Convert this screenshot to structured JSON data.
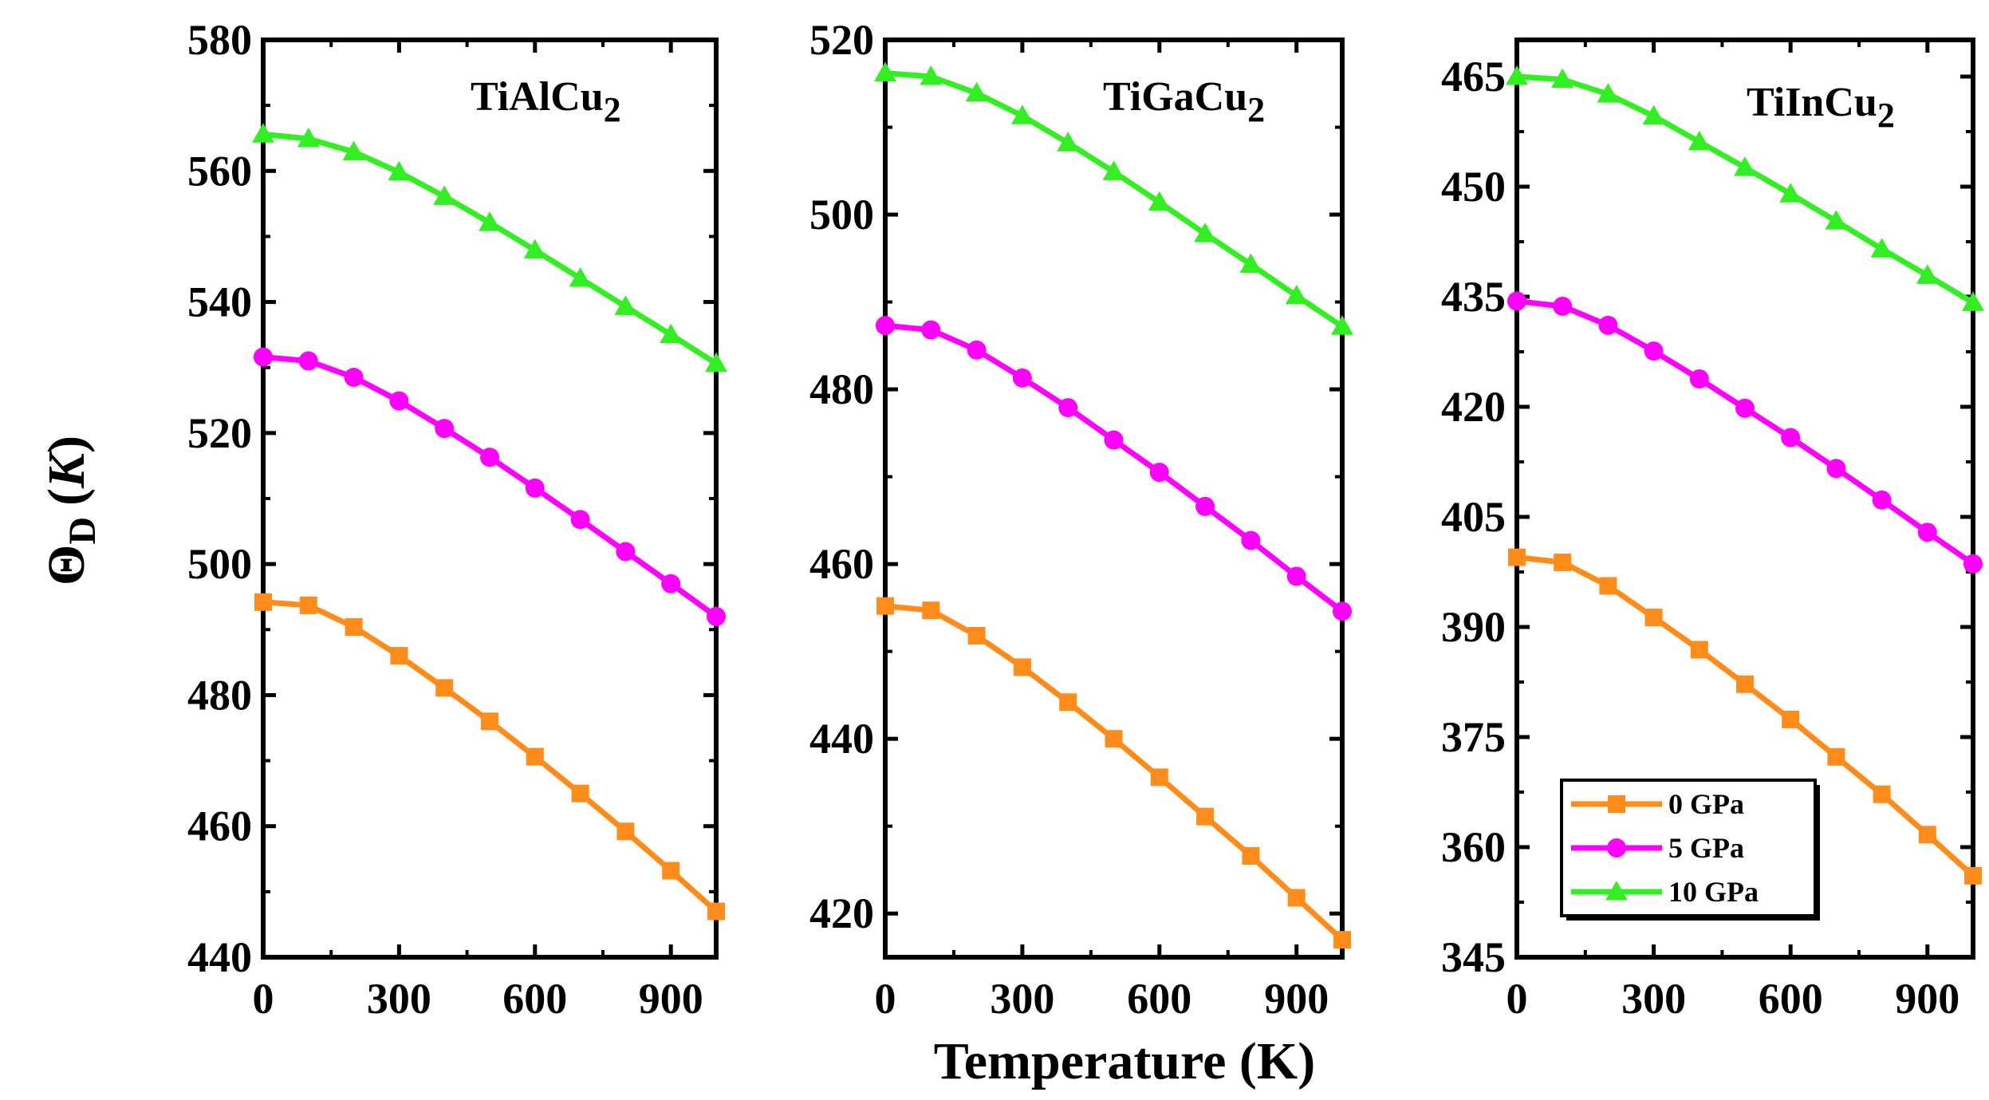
{
  "figure": {
    "xlabel": "Temperature (K)",
    "ylabel_main": "Θ",
    "ylabel_sub": "D",
    "ylabel_unit_open": "(",
    "ylabel_unit": "K",
    "ylabel_unit_close": ")"
  },
  "colors": {
    "0 GPa": "#ff8c1a",
    "5 GPa": "#ff00ff",
    "10 GPa": "#33ee22"
  },
  "legend": [
    {
      "label": "0 GPa",
      "marker": "square"
    },
    {
      "label": "5 GPa",
      "marker": "circle"
    },
    {
      "label": "10 GPa",
      "marker": "triangle"
    }
  ],
  "chart_data": [
    {
      "type": "line",
      "title_main": "TiAlCu",
      "title_sub": "2",
      "xlabel": "Temperature (K)",
      "ylabel": "ΘD (K)",
      "xlim": [
        0,
        1000
      ],
      "ylim": [
        440,
        580
      ],
      "xticks": [
        0,
        300,
        600,
        900
      ],
      "yticks": [
        440,
        460,
        480,
        500,
        520,
        540,
        560,
        580
      ],
      "x": [
        0,
        100,
        200,
        300,
        400,
        500,
        600,
        700,
        800,
        900,
        1000
      ],
      "series": [
        {
          "name": "0 GPa",
          "marker": "square",
          "values": [
            494.2,
            493.7,
            490.4,
            486.0,
            481.1,
            476.0,
            470.6,
            465.0,
            459.2,
            453.2,
            447.0
          ]
        },
        {
          "name": "5 GPa",
          "marker": "circle",
          "values": [
            531.6,
            531.0,
            528.5,
            524.9,
            520.7,
            516.3,
            511.6,
            506.8,
            501.9,
            497.0,
            492.0
          ]
        },
        {
          "name": "10 GPa",
          "marker": "triangle",
          "values": [
            565.6,
            564.9,
            562.9,
            559.8,
            556.1,
            552.1,
            547.9,
            543.6,
            539.3,
            535.0,
            530.6
          ]
        }
      ]
    },
    {
      "type": "line",
      "title_main": "TiGaCu",
      "title_sub": "2",
      "xlabel": "Temperature (K)",
      "ylabel": "ΘD (K)",
      "xlim": [
        0,
        1000
      ],
      "ylim": [
        415,
        520
      ],
      "xticks": [
        0,
        300,
        600,
        900
      ],
      "yticks": [
        420,
        440,
        460,
        480,
        500,
        520
      ],
      "x": [
        0,
        100,
        200,
        300,
        400,
        500,
        600,
        700,
        800,
        900,
        1000
      ],
      "series": [
        {
          "name": "0 GPa",
          "marker": "square",
          "values": [
            455.2,
            454.7,
            451.8,
            448.2,
            444.2,
            440.0,
            435.6,
            431.1,
            426.6,
            421.8,
            417.0
          ]
        },
        {
          "name": "5 GPa",
          "marker": "circle",
          "values": [
            487.3,
            486.8,
            484.5,
            481.3,
            477.9,
            474.2,
            470.5,
            466.6,
            462.7,
            458.6,
            454.6
          ]
        },
        {
          "name": "10 GPa",
          "marker": "triangle",
          "values": [
            516.2,
            515.8,
            513.9,
            511.3,
            508.2,
            504.9,
            501.4,
            497.8,
            494.3,
            490.7,
            487.2
          ]
        }
      ]
    },
    {
      "type": "line",
      "title_main": "TiInCu",
      "title_sub": "2",
      "xlabel": "Temperature (K)",
      "ylabel": "ΘD (K)",
      "xlim": [
        0,
        1000
      ],
      "ylim": [
        345,
        470
      ],
      "xticks": [
        0,
        300,
        600,
        900
      ],
      "yticks": [
        345,
        360,
        375,
        390,
        405,
        420,
        435,
        450,
        465
      ],
      "x": [
        0,
        100,
        200,
        300,
        400,
        500,
        600,
        700,
        800,
        900,
        1000
      ],
      "series": [
        {
          "name": "0 GPa",
          "marker": "square",
          "values": [
            399.5,
            398.8,
            395.6,
            391.3,
            386.9,
            382.2,
            377.4,
            372.3,
            367.2,
            361.7,
            356.1
          ]
        },
        {
          "name": "5 GPa",
          "marker": "circle",
          "values": [
            434.4,
            433.7,
            431.1,
            427.6,
            423.8,
            419.8,
            415.8,
            411.6,
            407.3,
            402.9,
            398.6
          ]
        },
        {
          "name": "10 GPa",
          "marker": "triangle",
          "values": [
            465.0,
            464.6,
            462.6,
            459.6,
            456.1,
            452.6,
            449.0,
            445.3,
            441.5,
            437.9,
            434.2
          ]
        }
      ]
    }
  ]
}
